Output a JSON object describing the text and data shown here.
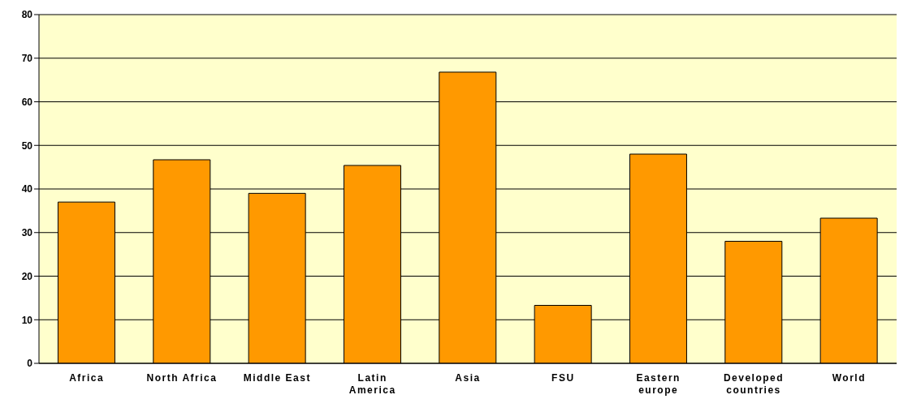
{
  "chart_data": {
    "type": "bar",
    "categories": [
      "Africa",
      "North Africa",
      "Middle East",
      "Latin America",
      "Asia",
      "FSU",
      "Eastern europe",
      "Developed countries",
      "World"
    ],
    "values": [
      37,
      46.7,
      39,
      45.4,
      66.8,
      13.3,
      48,
      28,
      33.3
    ],
    "color": "#ff9900",
    "ylim": [
      0,
      80
    ],
    "yticks": [
      0,
      10,
      20,
      30,
      40,
      50,
      60,
      70,
      80
    ],
    "grid": "y",
    "legend": false
  }
}
